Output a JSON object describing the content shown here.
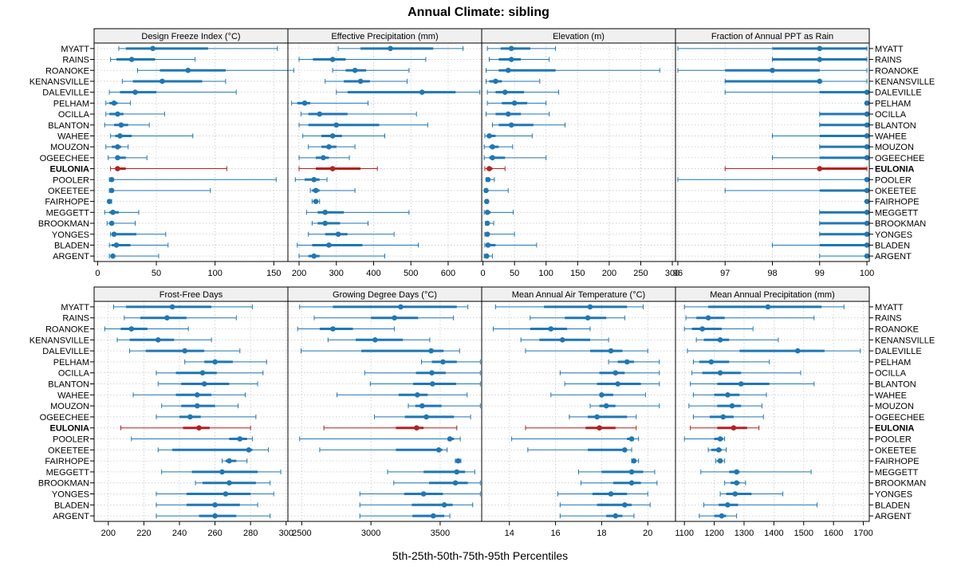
{
  "title": "Annual Climate: sibling",
  "xlabel": "5th-25th-50th-75th-95th Percentiles",
  "series_names": [
    "MYATT",
    "RAINS",
    "ROANOKE",
    "KENANSVILLE",
    "DALEVILLE",
    "PELHAM",
    "OCILLA",
    "BLANTON",
    "WAHEE",
    "MOUZON",
    "OGEECHEE",
    "EULONIA",
    "POOLER",
    "OKEETEE",
    "FAIRHOPE",
    "MEGGETT",
    "BROOKMAN",
    "YONGES",
    "BLADEN",
    "ARGENT"
  ],
  "highlight": "EULONIA",
  "colors": {
    "normal": "#1f77b4",
    "highlight": "#b22222",
    "strip": "#f0f0f0",
    "grid": "#c8c8c8"
  },
  "chart_data": [
    {
      "type": "box-percentile",
      "title": "Design Freeze Index (°C)",
      "xlim": [
        -3,
        162
      ],
      "ticks": [
        0,
        50,
        100,
        150
      ],
      "values": [
        [
          18,
          24,
          47,
          94,
          153
        ],
        [
          11,
          16,
          29,
          49,
          83
        ],
        [
          34,
          53,
          77,
          109,
          167
        ],
        [
          21,
          30,
          55,
          89,
          109
        ],
        [
          10,
          19,
          32,
          50,
          118
        ],
        [
          7,
          10,
          14,
          17,
          28
        ],
        [
          7,
          10,
          17,
          22,
          57
        ],
        [
          6,
          14,
          20,
          26,
          44
        ],
        [
          11,
          15,
          19,
          29,
          81
        ],
        [
          7,
          12,
          17,
          20,
          26
        ],
        [
          9,
          15,
          17,
          24,
          42
        ],
        [
          11,
          15,
          17,
          24,
          110
        ],
        [
          10,
          11,
          12,
          12,
          152
        ],
        [
          10,
          11,
          12,
          14,
          96
        ],
        [
          10,
          10,
          10,
          11,
          12
        ],
        [
          6,
          10,
          13,
          18,
          35
        ],
        [
          8,
          11,
          12,
          14,
          32
        ],
        [
          11,
          12,
          14,
          33,
          58
        ],
        [
          10,
          12,
          16,
          28,
          60
        ],
        [
          10,
          11,
          13,
          15,
          52
        ]
      ]
    },
    {
      "type": "box-percentile",
      "title": "Effective Precipitation (mm)",
      "xlim": [
        170,
        690
      ],
      "ticks": [
        200,
        300,
        400,
        500,
        600
      ],
      "values": [
        [
          305,
          365,
          445,
          560,
          640
        ],
        [
          200,
          237,
          290,
          325,
          540
        ],
        [
          290,
          325,
          350,
          380,
          495
        ],
        [
          270,
          320,
          365,
          390,
          490
        ],
        [
          300,
          330,
          530,
          620,
          685
        ],
        [
          180,
          195,
          215,
          230,
          385
        ],
        [
          205,
          225,
          255,
          330,
          515
        ],
        [
          200,
          225,
          300,
          415,
          545
        ],
        [
          210,
          260,
          290,
          315,
          430
        ],
        [
          225,
          260,
          280,
          300,
          350
        ],
        [
          200,
          245,
          265,
          280,
          335
        ],
        [
          200,
          245,
          290,
          365,
          410
        ],
        [
          190,
          215,
          240,
          255,
          275
        ],
        [
          230,
          235,
          245,
          255,
          350
        ],
        [
          235,
          238,
          245,
          250,
          255
        ],
        [
          220,
          250,
          270,
          320,
          495
        ],
        [
          235,
          250,
          270,
          310,
          385
        ],
        [
          225,
          270,
          305,
          330,
          455
        ],
        [
          195,
          235,
          280,
          370,
          520
        ],
        [
          200,
          225,
          240,
          255,
          430
        ]
      ]
    },
    {
      "type": "box-percentile",
      "title": "Elevation (m)",
      "xlim": [
        -2,
        305
      ],
      "ticks": [
        0,
        50,
        100,
        150,
        200,
        250,
        300
      ],
      "values": [
        [
          7,
          28,
          45,
          75,
          115
        ],
        [
          10,
          25,
          45,
          60,
          105
        ],
        [
          5,
          25,
          40,
          115,
          280
        ],
        [
          5,
          10,
          20,
          30,
          90
        ],
        [
          7,
          20,
          35,
          65,
          120
        ],
        [
          7,
          30,
          50,
          70,
          100
        ],
        [
          5,
          20,
          40,
          60,
          105
        ],
        [
          15,
          25,
          45,
          80,
          130
        ],
        [
          3,
          6,
          10,
          20,
          78
        ],
        [
          2,
          10,
          15,
          25,
          47
        ],
        [
          2,
          10,
          15,
          35,
          100
        ],
        [
          3,
          6,
          10,
          15,
          35
        ],
        [
          5,
          6,
          8,
          12,
          18
        ],
        [
          3,
          4,
          5,
          6,
          40
        ],
        [
          4,
          5,
          6,
          7,
          8
        ],
        [
          2,
          5,
          7,
          12,
          48
        ],
        [
          4,
          5,
          7,
          9,
          17
        ],
        [
          3,
          5,
          7,
          10,
          50
        ],
        [
          3,
          5,
          8,
          20,
          85
        ],
        [
          2,
          4,
          6,
          8,
          15
        ]
      ]
    },
    {
      "type": "box-percentile",
      "title": "Fraction of Annual PPT as Rain",
      "xlim": [
        95.95,
        100.05
      ],
      "ticks": [
        96,
        97,
        98,
        99,
        100
      ],
      "values": [
        [
          96,
          98,
          99,
          100,
          100
        ],
        [
          98,
          98,
          99,
          100,
          100
        ],
        [
          96,
          97,
          98,
          99,
          100
        ],
        [
          97,
          97,
          99,
          99,
          100
        ],
        [
          97,
          99,
          100,
          100,
          100
        ],
        [
          100,
          100,
          100,
          100,
          100
        ],
        [
          99,
          99,
          100,
          100,
          100
        ],
        [
          99,
          99,
          100,
          100,
          100
        ],
        [
          98,
          99,
          100,
          100,
          100
        ],
        [
          99,
          99,
          100,
          100,
          100
        ],
        [
          98,
          99,
          100,
          100,
          100
        ],
        [
          97,
          99,
          99,
          100,
          100
        ],
        [
          96,
          100,
          100,
          100,
          100
        ],
        [
          97,
          99,
          100,
          100,
          100
        ],
        [
          100,
          100,
          100,
          100,
          100
        ],
        [
          99,
          99,
          100,
          100,
          100
        ],
        [
          99,
          99,
          100,
          100,
          100
        ],
        [
          99,
          99,
          100,
          100,
          100
        ],
        [
          98,
          99,
          100,
          100,
          100
        ],
        [
          99,
          100,
          100,
          100,
          100
        ]
      ]
    },
    {
      "type": "box-percentile",
      "title": "Frost-Free Days",
      "xlim": [
        192,
        301
      ],
      "ticks": [
        200,
        220,
        240,
        260,
        280,
        300
      ],
      "values": [
        [
          203,
          210,
          236,
          258,
          281
        ],
        [
          209,
          218,
          233,
          244,
          272
        ],
        [
          198,
          207,
          213,
          222,
          245
        ],
        [
          205,
          212,
          228,
          237,
          258
        ],
        [
          212,
          221,
          243,
          254,
          274
        ],
        [
          243,
          254,
          260,
          270,
          289
        ],
        [
          227,
          238,
          253,
          261,
          287
        ],
        [
          228,
          241,
          254,
          268,
          284
        ],
        [
          214,
          238,
          250,
          258,
          277
        ],
        [
          230,
          241,
          250,
          260,
          273
        ],
        [
          227,
          240,
          246,
          252,
          283
        ],
        [
          207,
          242,
          251,
          257,
          280
        ],
        [
          213,
          268,
          274,
          278,
          281
        ],
        [
          228,
          236,
          279,
          281,
          290
        ],
        [
          264,
          266,
          268,
          272,
          278
        ],
        [
          230,
          247,
          264,
          284,
          297
        ],
        [
          249,
          253,
          268,
          283,
          291
        ],
        [
          227,
          244,
          266,
          280,
          293
        ],
        [
          227,
          244,
          260,
          274,
          284
        ],
        [
          227,
          251,
          260,
          272,
          291
        ]
      ]
    },
    {
      "type": "box-percentile",
      "title": "Growing Degree Days (°C)",
      "xlim": [
        2400,
        3800
      ],
      "ticks": [
        2500,
        3000,
        3500
      ],
      "values": [
        [
          2485,
          2725,
          3215,
          3620,
          3700
        ],
        [
          2590,
          3000,
          3170,
          3340,
          3595
        ],
        [
          2470,
          2630,
          2725,
          2870,
          3170
        ],
        [
          2690,
          2890,
          3030,
          3230,
          3425
        ],
        [
          2495,
          2930,
          3435,
          3525,
          3640
        ],
        [
          3365,
          3440,
          3520,
          3620,
          3790
        ],
        [
          2955,
          3325,
          3440,
          3540,
          3790
        ],
        [
          2995,
          3305,
          3445,
          3615,
          3790
        ],
        [
          2755,
          3200,
          3335,
          3410,
          3695
        ],
        [
          3270,
          3320,
          3370,
          3510,
          3790
        ],
        [
          3025,
          3245,
          3400,
          3600,
          3720
        ],
        [
          2660,
          3180,
          3330,
          3380,
          3620
        ],
        [
          2485,
          3555,
          3570,
          3600,
          3645
        ],
        [
          2630,
          3180,
          3490,
          3515,
          3550
        ],
        [
          3610,
          3620,
          3630,
          3640,
          3650
        ],
        [
          3120,
          3380,
          3620,
          3680,
          3750
        ],
        [
          3165,
          3420,
          3610,
          3700,
          3790
        ],
        [
          2920,
          3240,
          3380,
          3520,
          3790
        ],
        [
          2920,
          3295,
          3530,
          3590,
          3735
        ],
        [
          2920,
          3300,
          3450,
          3530,
          3570
        ]
      ]
    },
    {
      "type": "box-percentile",
      "title": "Mean Annual Air Temperature (°C)",
      "xlim": [
        12.8,
        21.2
      ],
      "ticks": [
        14,
        16,
        18,
        20
      ],
      "values": [
        [
          13.4,
          15.5,
          17.5,
          19.1,
          19.8
        ],
        [
          14.9,
          16.4,
          17.4,
          18.2,
          19.0
        ],
        [
          13.3,
          14.9,
          15.8,
          16.5,
          17.5
        ],
        [
          14.5,
          15.3,
          16.3,
          17.5,
          18.3
        ],
        [
          14.7,
          17.5,
          18.4,
          18.9,
          20.0
        ],
        [
          18.3,
          18.7,
          19.1,
          19.4,
          20.5
        ],
        [
          16.2,
          17.9,
          18.6,
          19.0,
          20.5
        ],
        [
          16.4,
          17.8,
          18.7,
          19.7,
          20.5
        ],
        [
          15.8,
          17.9,
          18.0,
          18.5,
          19.9
        ],
        [
          17.5,
          17.9,
          18.2,
          18.6,
          20.5
        ],
        [
          16.6,
          17.4,
          17.8,
          19.1,
          19.5
        ],
        [
          14.7,
          17.3,
          17.9,
          18.6,
          19.5
        ],
        [
          14.1,
          19.1,
          19.3,
          19.4,
          19.6
        ],
        [
          14.8,
          17.4,
          19.0,
          19.1,
          19.3
        ],
        [
          19.3,
          19.4,
          19.4,
          19.5,
          19.6
        ],
        [
          17.0,
          18.0,
          19.3,
          19.8,
          20.3
        ],
        [
          17.1,
          18.5,
          19.3,
          19.7,
          20.4
        ],
        [
          16.1,
          17.6,
          18.4,
          19.1,
          20.0
        ],
        [
          16.2,
          17.8,
          19.0,
          19.3,
          20.1
        ],
        [
          16.2,
          18.2,
          18.6,
          18.9,
          19.4
        ]
      ]
    },
    {
      "type": "box-percentile",
      "title": "Mean Annual Precipitation (mm)",
      "xlim": [
        1070,
        1720
      ],
      "ticks": [
        1100,
        1200,
        1300,
        1400,
        1500,
        1600,
        1700
      ],
      "values": [
        [
          1100,
          1180,
          1380,
          1560,
          1635
        ],
        [
          1105,
          1140,
          1180,
          1235,
          1535
        ],
        [
          1100,
          1125,
          1160,
          1225,
          1330
        ],
        [
          1140,
          1165,
          1220,
          1250,
          1415
        ],
        [
          1110,
          1285,
          1480,
          1570,
          1690
        ],
        [
          1130,
          1150,
          1190,
          1250,
          1385
        ],
        [
          1125,
          1160,
          1220,
          1290,
          1490
        ],
        [
          1120,
          1210,
          1290,
          1385,
          1535
        ],
        [
          1130,
          1200,
          1245,
          1285,
          1375
        ],
        [
          1115,
          1210,
          1260,
          1290,
          1360
        ],
        [
          1130,
          1185,
          1230,
          1265,
          1365
        ],
        [
          1120,
          1210,
          1265,
          1310,
          1350
        ],
        [
          1100,
          1200,
          1220,
          1230,
          1235
        ],
        [
          1180,
          1190,
          1215,
          1225,
          1240
        ],
        [
          1205,
          1210,
          1220,
          1228,
          1235
        ],
        [
          1155,
          1250,
          1275,
          1285,
          1525
        ],
        [
          1235,
          1255,
          1275,
          1285,
          1305
        ],
        [
          1220,
          1240,
          1270,
          1325,
          1430
        ],
        [
          1165,
          1215,
          1245,
          1280,
          1545
        ],
        [
          1150,
          1200,
          1225,
          1240,
          1275
        ]
      ]
    }
  ]
}
